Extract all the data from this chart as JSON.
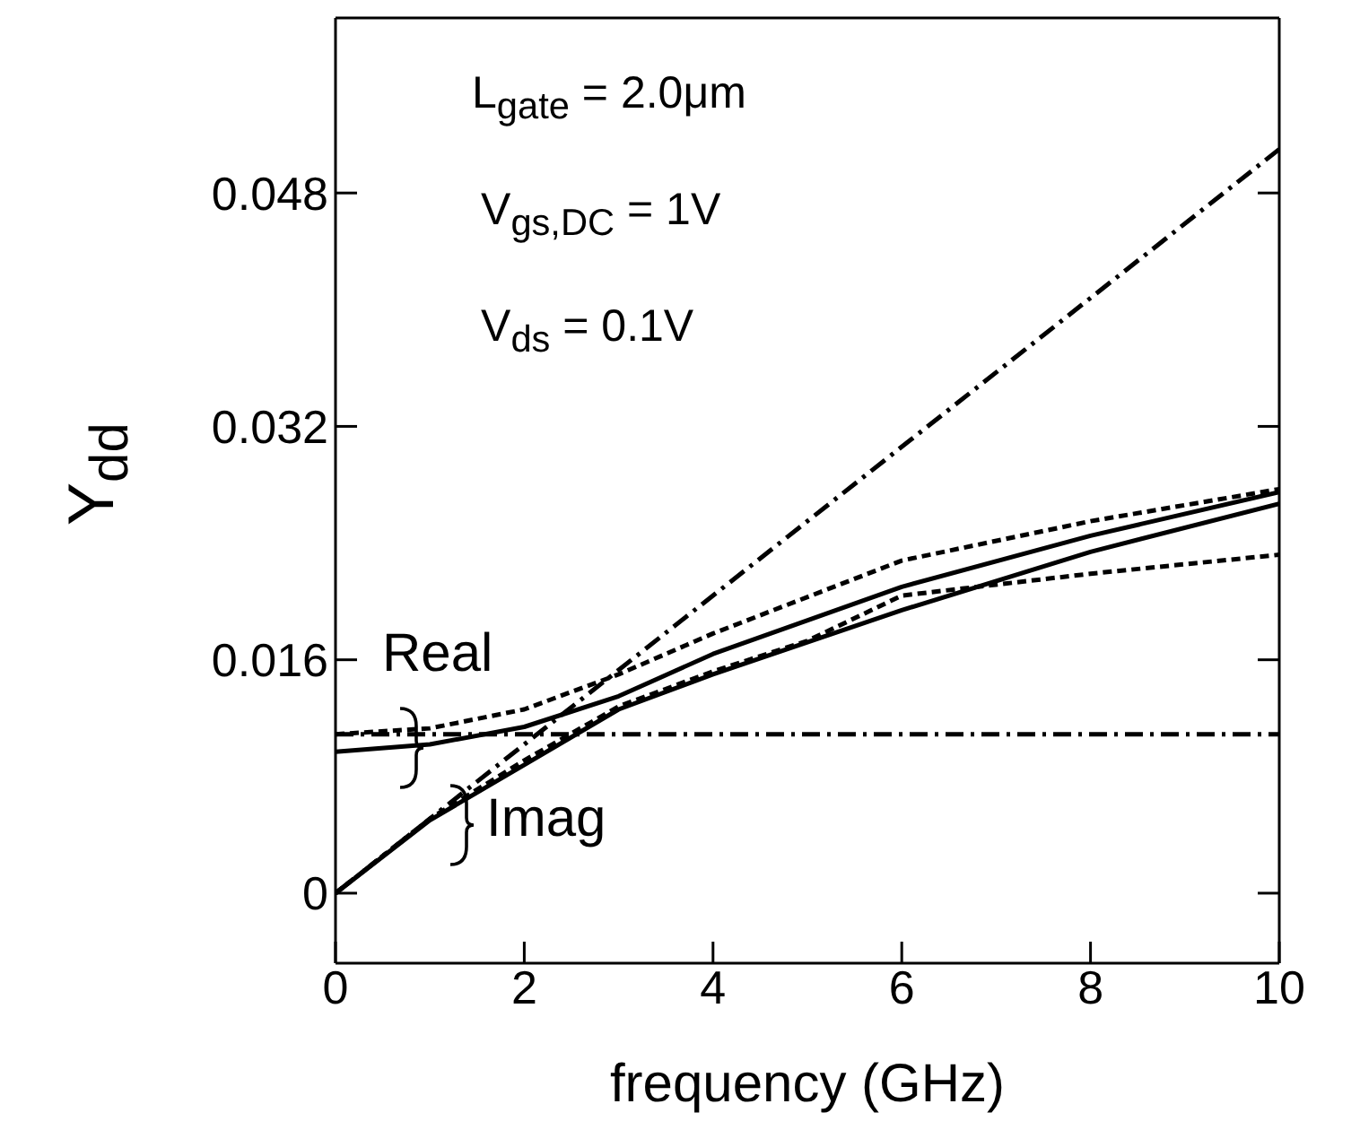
{
  "chart_data": {
    "type": "line",
    "xlabel": "frequency (GHz)",
    "ylabel": "Y$_{dd}$",
    "xlim": [
      0,
      10
    ],
    "xticks": [
      0,
      2,
      4,
      6,
      8,
      10
    ],
    "ylim": [
      -0.0048,
      0.06
    ],
    "yticks": [
      0,
      0.016,
      0.032,
      0.048
    ],
    "marker": "none",
    "annotations": [
      "L$_{gate}$ = 2.0μm",
      "V$_{gs,DC}$ = 1V",
      "V$_{ds}$ = 0.1V",
      "Real",
      "Imag"
    ],
    "series": [
      {
        "color": "#000000",
        "line_style": "dashed",
        "x": [
          0,
          10
        ],
        "values": [
          0,
          0.051
        ]
      },
      {
        "color": "#000000",
        "line_style": "dashed",
        "x": [
          0,
          10
        ],
        "values": [
          0.0109,
          0.0109
        ]
      },
      {
        "color": "#000000",
        "line_style": "solid",
        "x": [
          0,
          1,
          2,
          3,
          4,
          6,
          8,
          10
        ],
        "values": [
          0.0097,
          0.0102,
          0.0114,
          0.0135,
          0.0164,
          0.021,
          0.0245,
          0.0275
        ]
      },
      {
        "color": "#000000",
        "line_style": "dotted",
        "x": [
          0,
          1,
          2,
          3,
          4,
          6,
          8,
          10
        ],
        "values": [
          0.0109,
          0.0113,
          0.0126,
          0.015,
          0.0178,
          0.0228,
          0.0255,
          0.0277
        ]
      },
      {
        "color": "#000000",
        "line_style": "solid",
        "x": [
          0,
          1,
          2,
          3,
          4,
          6,
          8,
          10
        ],
        "values": [
          0,
          0.005,
          0.0088,
          0.0126,
          0.015,
          0.0194,
          0.0234,
          0.0267
        ]
      },
      {
        "color": "#000000",
        "line_style": "dotted",
        "x": [
          0,
          1,
          2,
          3,
          4,
          5,
          6,
          8,
          10
        ],
        "values": [
          0,
          0.0051,
          0.0091,
          0.0128,
          0.0152,
          0.0173,
          0.0204,
          0.0219,
          0.0232
        ]
      }
    ]
  }
}
